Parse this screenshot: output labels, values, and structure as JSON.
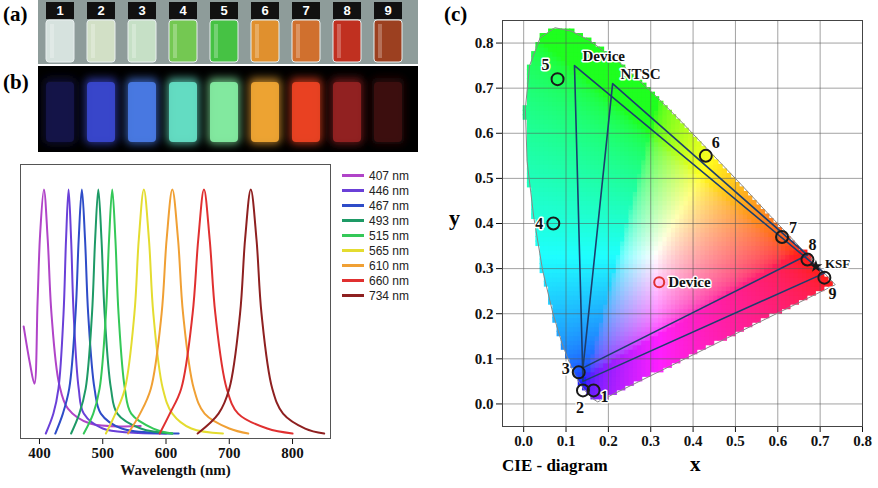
{
  "panels": [
    {
      "label": "(a)",
      "vials": [
        {
          "label": "1",
          "color": "#d6e2de"
        },
        {
          "label": "2",
          "color": "#d2e0c6"
        },
        {
          "label": "3",
          "color": "#c6e0c6"
        },
        {
          "label": "4",
          "color": "#74c852"
        },
        {
          "label": "5",
          "color": "#46c244"
        },
        {
          "label": "6",
          "color": "#e0902e"
        },
        {
          "label": "7",
          "color": "#d0702e"
        },
        {
          "label": "8",
          "color": "#c03020"
        },
        {
          "label": "9",
          "color": "#9c4020"
        }
      ]
    },
    {
      "label": "(b)",
      "colors": [
        "#15154a",
        "#3a48d0",
        "#4a7ce8",
        "#66e2c8",
        "#86f0a4",
        "#f4a834",
        "#f04424",
        "#962222",
        "#3e1010"
      ]
    }
  ],
  "chart_data": [
    {
      "type": "line",
      "x_label": "Wavelength (nm)",
      "xlim": [
        370,
        860
      ],
      "xticks": [
        400,
        500,
        600,
        700,
        800
      ],
      "ylim": [
        0,
        1.1
      ],
      "tick_labels": "x",
      "legend": "right",
      "series": [
        {
          "name": "407 nm",
          "color": "#b044c8",
          "x": [
            375,
            385,
            392,
            397,
            401,
            407,
            413,
            419,
            431,
            445,
            480,
            560
          ],
          "values": [
            0.45,
            0.3,
            0.22,
            0.55,
            0.82,
            1.0,
            0.8,
            0.5,
            0.22,
            0.12,
            0.06,
            0.05
          ]
        },
        {
          "name": "446 nm",
          "color": "#6a40d8",
          "x": [
            410,
            422,
            430,
            438,
            442,
            446,
            450,
            454,
            462,
            470,
            500,
            600
          ],
          "values": [
            0.02,
            0.1,
            0.2,
            0.5,
            0.8,
            1.0,
            0.8,
            0.5,
            0.2,
            0.1,
            0.04,
            0.02
          ]
        },
        {
          "name": "467 nm",
          "color": "#2e4cc8",
          "x": [
            425,
            437,
            447,
            457,
            462,
            467,
            472,
            477,
            487,
            497,
            530,
            620
          ],
          "values": [
            0.02,
            0.1,
            0.2,
            0.5,
            0.8,
            1.0,
            0.8,
            0.5,
            0.2,
            0.1,
            0.04,
            0.02
          ]
        },
        {
          "name": "493 nm",
          "color": "#1e9a66",
          "x": [
            450,
            463,
            473,
            483,
            488,
            493,
            498,
            503,
            513,
            523,
            560,
            610
          ],
          "values": [
            0.02,
            0.1,
            0.2,
            0.5,
            0.8,
            1.0,
            0.8,
            0.5,
            0.2,
            0.1,
            0.04,
            0.02
          ]
        },
        {
          "name": "515 nm",
          "color": "#34c858",
          "x": [
            470,
            485,
            495,
            505,
            510,
            515,
            520,
            525,
            535,
            545,
            580,
            610
          ],
          "values": [
            0.02,
            0.1,
            0.2,
            0.5,
            0.8,
            1.0,
            0.8,
            0.5,
            0.2,
            0.1,
            0.04,
            0.02
          ]
        },
        {
          "name": "565 nm",
          "color": "#e4dc30",
          "x": [
            505,
            520,
            535,
            550,
            557,
            565,
            573,
            580,
            595,
            610,
            640,
            690
          ],
          "values": [
            0.02,
            0.1,
            0.2,
            0.5,
            0.8,
            1.0,
            0.8,
            0.5,
            0.2,
            0.1,
            0.04,
            0.02
          ]
        },
        {
          "name": "610 nm",
          "color": "#f0a034",
          "x": [
            540,
            559,
            576,
            593,
            601,
            610,
            619,
            627,
            644,
            661,
            700,
            730
          ],
          "values": [
            0.02,
            0.1,
            0.2,
            0.5,
            0.8,
            1.0,
            0.8,
            0.5,
            0.2,
            0.1,
            0.04,
            0.02
          ]
        },
        {
          "name": "660 nm",
          "color": "#e03030",
          "x": [
            590,
            606,
            624,
            642,
            651,
            660,
            669,
            678,
            696,
            714,
            760,
            800
          ],
          "values": [
            0.02,
            0.1,
            0.2,
            0.5,
            0.8,
            1.0,
            0.8,
            0.5,
            0.2,
            0.1,
            0.04,
            0.02
          ]
        },
        {
          "name": "734 nm",
          "color": "#8e2020",
          "x": [
            650,
            683,
            700,
            717,
            725,
            734,
            743,
            751,
            768,
            785,
            820,
            850
          ],
          "values": [
            0.02,
            0.1,
            0.2,
            0.5,
            0.8,
            1.0,
            0.8,
            0.5,
            0.2,
            0.1,
            0.04,
            0.02
          ]
        }
      ]
    },
    {
      "type": "scatter",
      "label": "(c)",
      "caption": "CIE - diagram",
      "x_label": "x",
      "y_label": "y",
      "xlim": [
        -0.05,
        0.8
      ],
      "ylim": [
        -0.05,
        0.85
      ],
      "xticks": [
        {
          "value": 0,
          "label": "0.0"
        },
        0.1,
        0.2,
        0.3,
        0.4,
        0.5,
        0.6,
        0.7,
        0.8
      ],
      "yticks": [
        {
          "value": 0,
          "label": "0.0"
        },
        0.1,
        0.2,
        0.3,
        0.4,
        0.5,
        0.6,
        0.7,
        0.8
      ],
      "grid": true,
      "spectral_locus": {
        "x": [
          0.174,
          0.164,
          0.157,
          0.144,
          0.124,
          0.11,
          0.091,
          0.069,
          0.045,
          0.024,
          0.008,
          0.004,
          0.014,
          0.039,
          0.074,
          0.114,
          0.155,
          0.23,
          0.302,
          0.373,
          0.444,
          0.513,
          0.575,
          0.627,
          0.666,
          0.692,
          0.708,
          0.719,
          0.735
        ],
        "y": [
          0.005,
          0.011,
          0.018,
          0.03,
          0.058,
          0.087,
          0.133,
          0.201,
          0.295,
          0.413,
          0.538,
          0.655,
          0.75,
          0.812,
          0.834,
          0.826,
          0.806,
          0.754,
          0.692,
          0.625,
          0.555,
          0.487,
          0.424,
          0.373,
          0.334,
          0.308,
          0.292,
          0.281,
          0.265
        ]
      },
      "gamuts": [
        {
          "name": "Device",
          "color": "#1c3f6e",
          "x": [
            0.12,
            0.71,
            0.14
          ],
          "y": [
            0.75,
            0.29,
            0.05
          ]
        },
        {
          "name": "NTSC",
          "color": "#1c3f6e",
          "x": [
            0.67,
            0.21,
            0.14
          ],
          "y": [
            0.33,
            0.71,
            0.08
          ]
        }
      ],
      "marker": "circle",
      "points": [
        {
          "label": "1",
          "x": 0.165,
          "y": 0.03
        },
        {
          "label": "2",
          "x": 0.14,
          "y": 0.03
        },
        {
          "label": "3",
          "x": 0.13,
          "y": 0.07
        },
        {
          "label": "4",
          "x": 0.07,
          "y": 0.4
        },
        {
          "label": "5",
          "x": 0.08,
          "y": 0.72
        },
        {
          "label": "6",
          "x": 0.43,
          "y": 0.55
        },
        {
          "label": "7",
          "x": 0.61,
          "y": 0.37
        },
        {
          "label": "8",
          "x": 0.67,
          "y": 0.32
        },
        {
          "label": "9",
          "x": 0.71,
          "y": 0.28
        }
      ],
      "white_point": {
        "label": "Device",
        "color": "#e03030",
        "x": 0.32,
        "y": 0.27
      },
      "references": [
        {
          "label": "KSF",
          "x": 0.69,
          "y": 0.305
        }
      ]
    }
  ]
}
